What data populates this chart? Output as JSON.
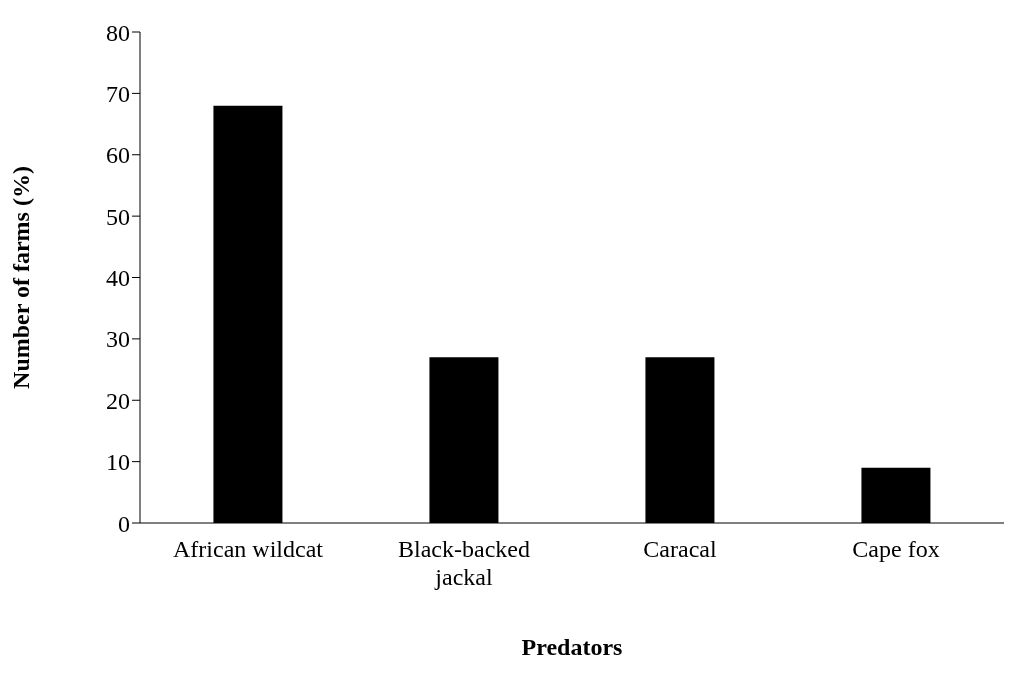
{
  "chart_data": {
    "type": "bar",
    "xlabel": "Predators",
    "ylabel": "Number of farms (%)",
    "categories": [
      "African wildcat",
      "Black-backed jackal",
      "Caracal",
      "Cape fox"
    ],
    "values": [
      68,
      27,
      27,
      9
    ],
    "color": "#000000",
    "ylim": [
      0,
      80
    ],
    "yticks": [
      0,
      10,
      20,
      30,
      40,
      50,
      60,
      70,
      80
    ],
    "grid": false,
    "legend": false
  }
}
